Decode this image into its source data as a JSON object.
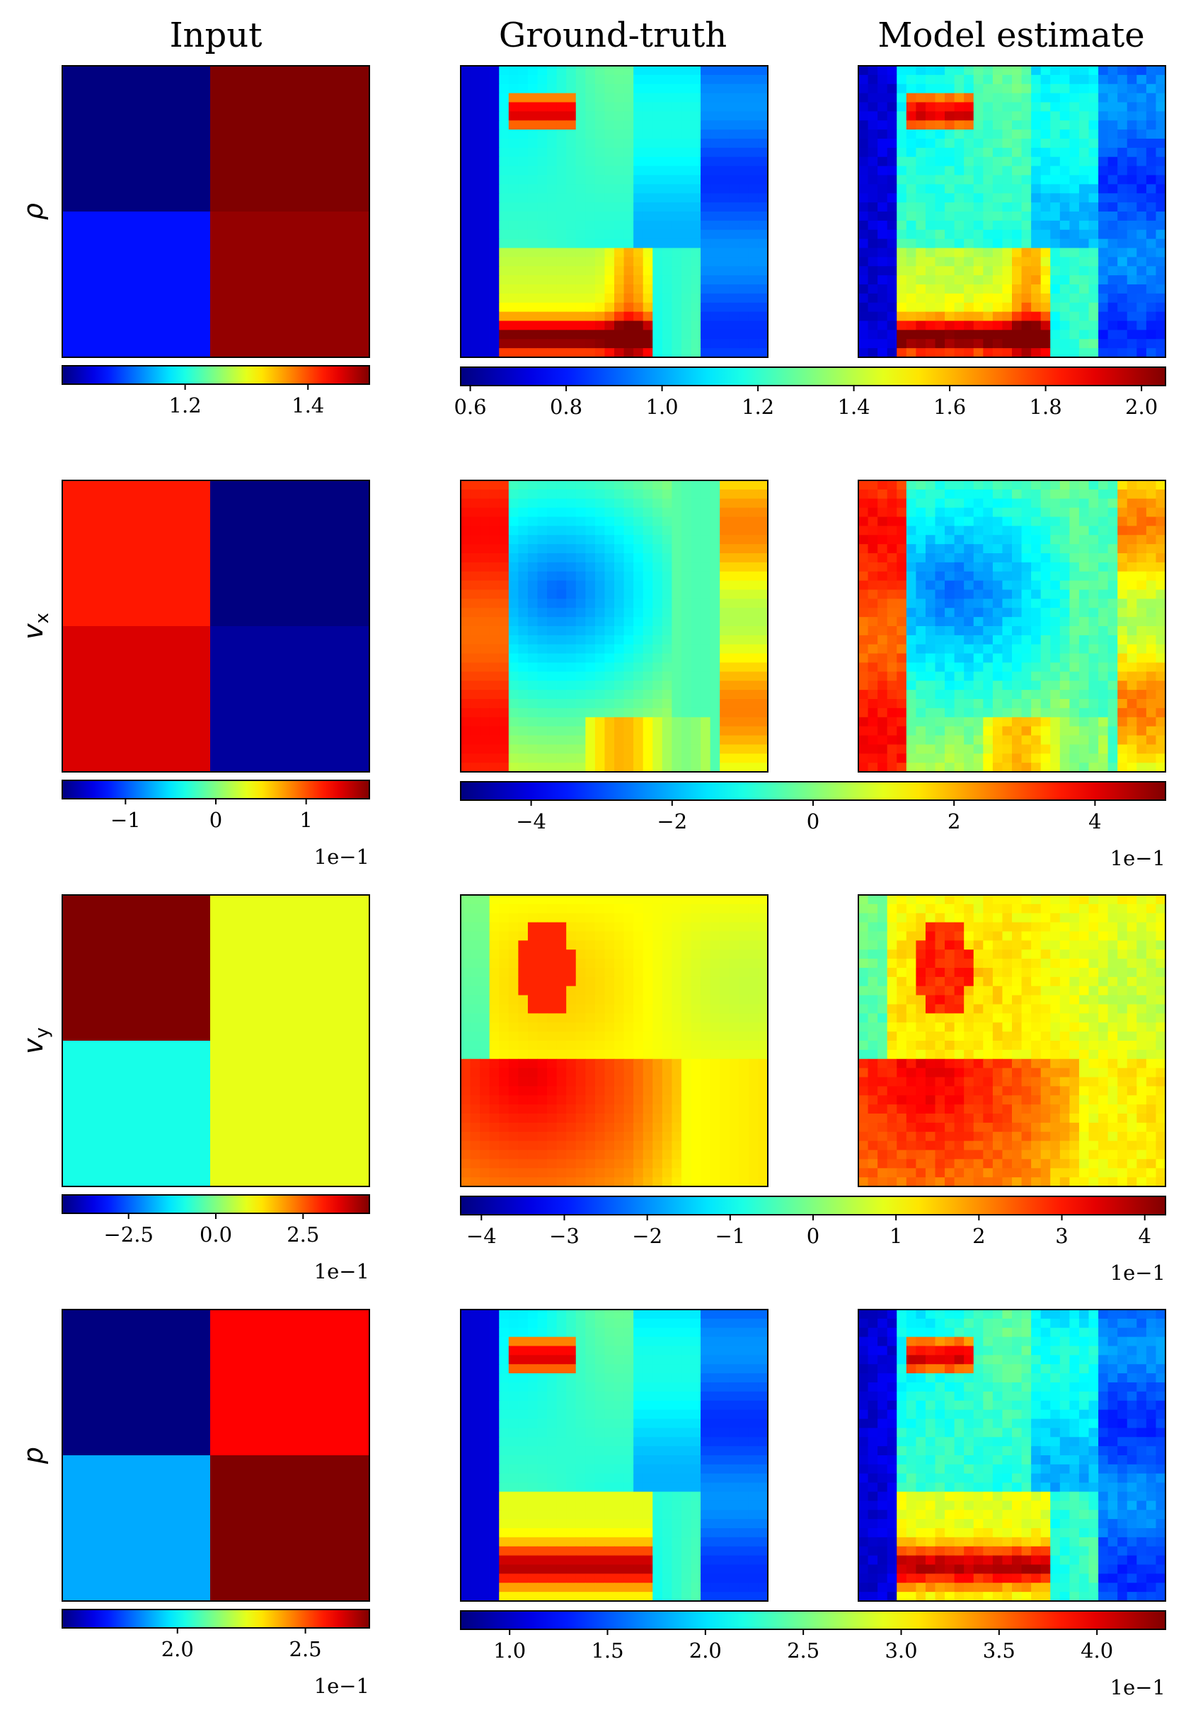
{
  "columns": {
    "input": "Input",
    "ground_truth": "Ground-truth",
    "estimate": "Model estimate"
  },
  "colormap": "jet",
  "chart_data": [
    {
      "type": "heatmap",
      "row": "rho",
      "label": "ρ",
      "label_sub": "",
      "input": {
        "quadrants": {
          "top_left": 1.0,
          "top_right": 1.5,
          "bottom_left": 1.07,
          "bottom_right": 1.49
        },
        "colorbar": {
          "min": 1.0,
          "max": 1.5,
          "ticks": [
            1.2,
            1.4
          ],
          "tick_labels": [
            "1.2",
            "1.4"
          ],
          "multiplier": ""
        }
      },
      "output": {
        "colorbar": {
          "min": 0.58,
          "max": 2.05,
          "ticks": [
            0.6,
            0.8,
            1.0,
            1.2,
            1.4,
            1.6,
            1.8,
            2.0
          ],
          "tick_labels": [
            "0.6",
            "0.8",
            "1.0",
            "1.2",
            "1.4",
            "1.6",
            "1.8",
            "2.0"
          ],
          "multiplier": ""
        }
      }
    },
    {
      "type": "heatmap",
      "row": "vx",
      "label": "v",
      "label_sub": "x",
      "input": {
        "quadrants": {
          "top_left": 1.2,
          "top_right": -1.7,
          "bottom_left": 1.4,
          "bottom_right": -1.6
        },
        "colorbar": {
          "min": -1.7,
          "max": 1.7,
          "ticks": [
            -1,
            0,
            1
          ],
          "tick_labels": [
            "−1",
            "0",
            "1"
          ],
          "multiplier": "1e−1"
        }
      },
      "output": {
        "colorbar": {
          "min": -5.0,
          "max": 5.0,
          "ticks": [
            -4,
            -2,
            0,
            2,
            4
          ],
          "tick_labels": [
            "−4",
            "−2",
            "0",
            "2",
            "4"
          ],
          "multiplier": "1e−1"
        }
      }
    },
    {
      "type": "heatmap",
      "row": "vy",
      "label": "v",
      "label_sub": "y",
      "input": {
        "quadrants": {
          "top_left": 4.4,
          "top_right": 0.9,
          "bottom_left": -0.9,
          "bottom_right": 0.9
        },
        "colorbar": {
          "min": -4.4,
          "max": 4.4,
          "ticks": [
            -2.5,
            0.0,
            2.5
          ],
          "tick_labels": [
            "−2.5",
            "0.0",
            "2.5"
          ],
          "multiplier": "1e−1"
        }
      },
      "output": {
        "colorbar": {
          "min": -4.25,
          "max": 4.25,
          "ticks": [
            -4,
            -3,
            -2,
            -1,
            0,
            1,
            2,
            3,
            4
          ],
          "tick_labels": [
            "−4",
            "−3",
            "−2",
            "−1",
            "0",
            "1",
            "2",
            "3",
            "4"
          ],
          "multiplier": "1e−1"
        }
      }
    },
    {
      "type": "heatmap",
      "row": "p",
      "label": "p",
      "label_sub": "",
      "input": {
        "quadrants": {
          "top_left": 1.55,
          "top_right": 2.6,
          "bottom_left": 1.9,
          "bottom_right": 2.75
        },
        "colorbar": {
          "min": 1.55,
          "max": 2.75,
          "ticks": [
            2.0,
            2.5
          ],
          "tick_labels": [
            "2.0",
            "2.5"
          ],
          "multiplier": "1e−1"
        }
      },
      "output": {
        "colorbar": {
          "min": 0.75,
          "max": 4.35,
          "ticks": [
            1.0,
            1.5,
            2.0,
            2.5,
            3.0,
            3.5,
            4.0
          ],
          "tick_labels": [
            "1.0",
            "1.5",
            "2.0",
            "2.5",
            "3.0",
            "3.5",
            "4.0"
          ],
          "multiplier": "1e−1"
        }
      }
    }
  ]
}
